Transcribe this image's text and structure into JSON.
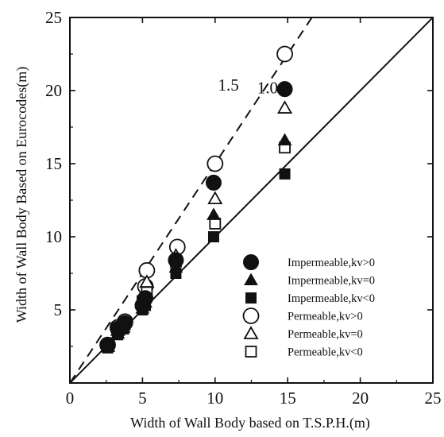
{
  "chart_data": {
    "type": "scatter",
    "xlabel": "Width of Wall Body based on T.S.P.H.(m)",
    "ylabel": "Width of Wall Body Based on Eurocodes(m)",
    "xlim": [
      0,
      25
    ],
    "ylim": [
      0,
      25
    ],
    "x_ticks": [
      0,
      5,
      10,
      15,
      20,
      25
    ],
    "y_ticks": [
      5,
      10,
      15,
      20,
      25
    ],
    "grid": false,
    "legend_position": "bottom-right",
    "reference_lines": [
      {
        "label": "1.0",
        "slope": 1.0,
        "style": "solid"
      },
      {
        "label": "1.5",
        "slope": 1.5,
        "style": "dashed"
      }
    ],
    "series": [
      {
        "name": "Impermeable,kv>0",
        "marker": "filled-circle",
        "points": [
          [
            2.6,
            2.6
          ],
          [
            3.3,
            3.7
          ],
          [
            3.8,
            4.1
          ],
          [
            5.0,
            5.3
          ],
          [
            5.2,
            5.8
          ],
          [
            7.3,
            8.4
          ],
          [
            9.9,
            13.7
          ],
          [
            14.8,
            20.1
          ]
        ]
      },
      {
        "name": "Impermeable,kv=0",
        "marker": "filled-triangle",
        "points": [
          [
            2.6,
            2.5
          ],
          [
            3.3,
            3.4
          ],
          [
            3.7,
            3.8
          ],
          [
            5.0,
            5.1
          ],
          [
            5.2,
            5.5
          ],
          [
            7.3,
            7.9
          ],
          [
            9.9,
            11.5
          ],
          [
            14.8,
            16.6
          ]
        ]
      },
      {
        "name": "Impermeable,kv<0",
        "marker": "filled-square",
        "points": [
          [
            2.6,
            2.4
          ],
          [
            3.3,
            3.3
          ],
          [
            3.7,
            3.7
          ],
          [
            5.0,
            5.0
          ],
          [
            5.2,
            5.3
          ],
          [
            7.3,
            7.5
          ],
          [
            9.9,
            10.0
          ],
          [
            14.8,
            14.3
          ]
        ]
      },
      {
        "name": "Permeable,kv>0",
        "marker": "open-circle",
        "points": [
          [
            2.6,
            2.6
          ],
          [
            3.3,
            3.8
          ],
          [
            3.8,
            4.2
          ],
          [
            5.2,
            6.6
          ],
          [
            5.3,
            7.7
          ],
          [
            7.4,
            9.3
          ],
          [
            10.0,
            15.0
          ],
          [
            14.8,
            22.5
          ]
        ]
      },
      {
        "name": "Permeable,kv=0",
        "marker": "open-triangle",
        "points": [
          [
            2.6,
            2.5
          ],
          [
            3.3,
            3.6
          ],
          [
            3.7,
            4.0
          ],
          [
            5.1,
            6.0
          ],
          [
            5.3,
            6.9
          ],
          [
            7.3,
            8.7
          ],
          [
            10.0,
            12.6
          ],
          [
            14.8,
            18.8
          ]
        ]
      },
      {
        "name": "Permeable,kv<0",
        "marker": "open-square",
        "points": [
          [
            2.6,
            2.5
          ],
          [
            3.3,
            3.5
          ],
          [
            3.7,
            3.9
          ],
          [
            5.0,
            5.6
          ],
          [
            5.3,
            6.2
          ],
          [
            7.3,
            8.3
          ],
          [
            10.0,
            10.9
          ],
          [
            14.8,
            16.1
          ]
        ]
      }
    ]
  }
}
